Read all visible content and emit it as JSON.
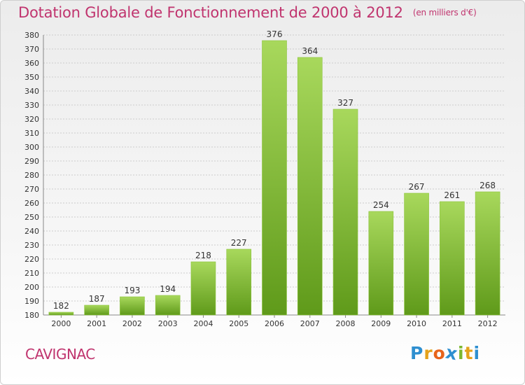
{
  "title": "Dotation Globale de Fonctionnement de 2000 à 2012",
  "subtitle": "(en milliers d'€)",
  "commune": "CAVIGNAC",
  "logo": {
    "letters": [
      "P",
      "r",
      "o",
      "x",
      "i",
      "t",
      "i"
    ],
    "colors": [
      "#2e8fd0",
      "#e4a21b",
      "#e8641b",
      "#2e8fd0",
      "#7cb82f",
      "#e4a21b",
      "#2e8fd0"
    ]
  },
  "colors": {
    "title": "#c0346e",
    "bar_top": "#a8d85c",
    "bar_bottom": "#5f9a1a",
    "grid": "#cccccc"
  },
  "chart_data": {
    "type": "bar",
    "categories": [
      "2000",
      "2001",
      "2002",
      "2003",
      "2004",
      "2005",
      "2006",
      "2007",
      "2008",
      "2009",
      "2010",
      "2011",
      "2012"
    ],
    "values": [
      182,
      187,
      193,
      194,
      218,
      227,
      376,
      364,
      327,
      254,
      267,
      261,
      268
    ],
    "ylim": [
      180,
      380
    ],
    "yticks": [
      180,
      190,
      200,
      210,
      220,
      230,
      240,
      250,
      260,
      270,
      280,
      290,
      300,
      310,
      320,
      330,
      340,
      350,
      360,
      370,
      380
    ],
    "grid": true,
    "data_labels": true
  }
}
